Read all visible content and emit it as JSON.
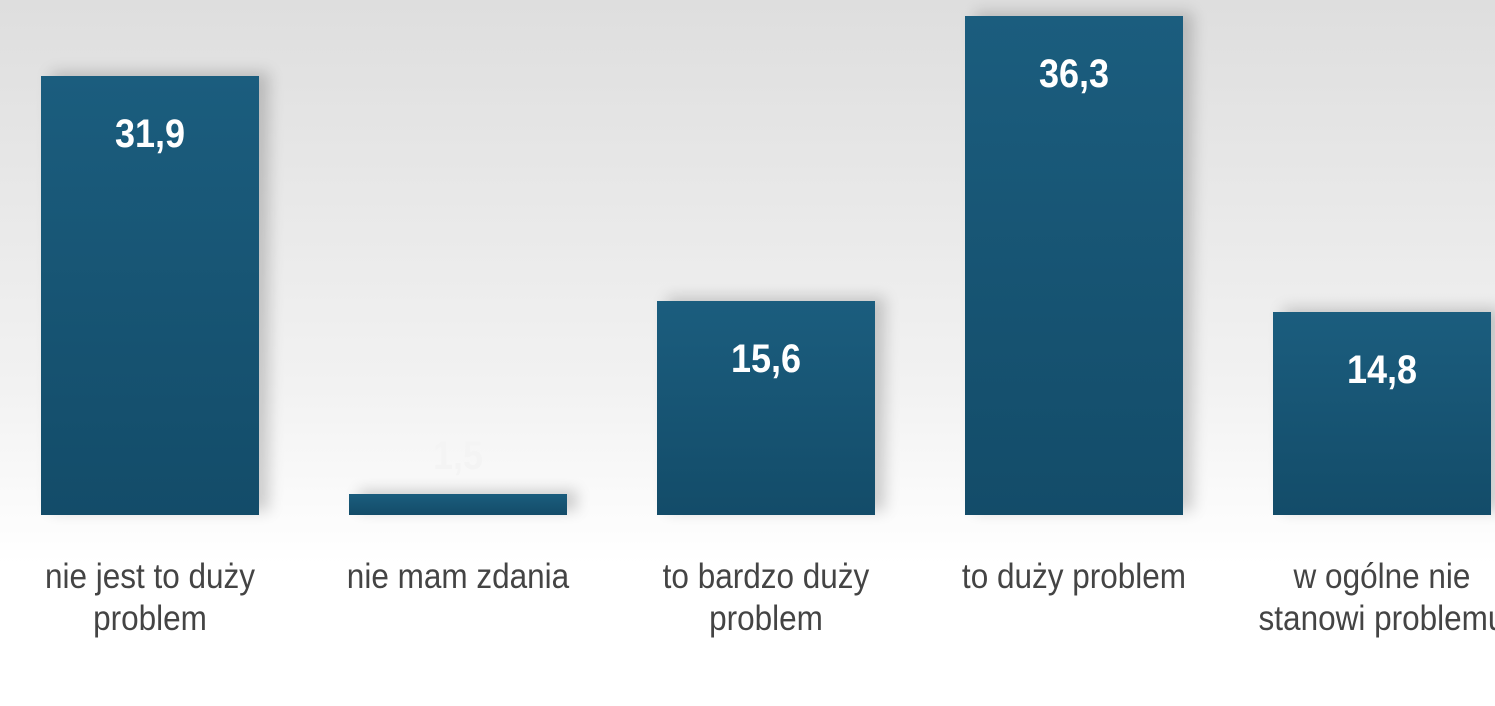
{
  "chart_data": {
    "type": "bar",
    "categories": [
      "nie jest to duży problem",
      "nie mam zdania",
      "to bardzo duży problem",
      "to duży problem",
      "w ogólne nie stanowi problemu"
    ],
    "values": [
      31.9,
      1.5,
      15.6,
      36.3,
      14.8
    ],
    "value_labels": [
      "31,9",
      "1,5",
      "15,6",
      "36,3",
      "14,8"
    ],
    "color": "#1b5d7e"
  }
}
